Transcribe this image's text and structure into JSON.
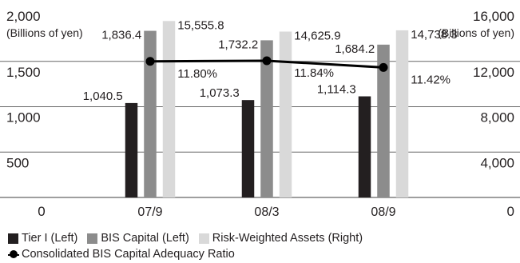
{
  "chart_data": {
    "type": "bar",
    "title": "",
    "categories": [
      "07/9",
      "08/3",
      "08/9"
    ],
    "left_axis": {
      "unit_label": "(Billions of yen)",
      "range": [
        0,
        2000
      ],
      "ticks": [
        0,
        500,
        1000,
        1500,
        2000
      ],
      "tick_labels": [
        "0",
        "500",
        "1,000",
        "1,500",
        "2,000"
      ]
    },
    "right_axis": {
      "unit_label": "(Billions of yen)",
      "range": [
        0,
        16000
      ],
      "ticks": [
        0,
        4000,
        8000,
        12000,
        16000
      ],
      "tick_labels": [
        "0",
        "4,000",
        "8,000",
        "12,000",
        "16,000"
      ]
    },
    "series": [
      {
        "name": "Tier I (Left)",
        "axis": "left",
        "color": "#231f20",
        "values": [
          1040.5,
          1073.3,
          1114.3
        ],
        "labels": [
          "1,040.5",
          "1,073.3",
          "1,114.3"
        ]
      },
      {
        "name": "BIS Capital (Left)",
        "axis": "left",
        "color": "#8c8c8c",
        "values": [
          1836.4,
          1732.2,
          1684.2
        ],
        "labels": [
          "1,836.4",
          "1,732.2",
          "1,684.2"
        ]
      },
      {
        "name": "Risk-Weighted Assets (Right)",
        "axis": "right",
        "color": "#d9d9d9",
        "values": [
          15555.8,
          14625.9,
          14738.3
        ],
        "labels": [
          "15,555.8",
          "14,625.9",
          "14,738.3"
        ]
      }
    ],
    "line_series": {
      "name": "Consolidated BIS Capital Adequacy Ratio",
      "color": "#000000",
      "values": [
        11.8,
        11.84,
        11.42
      ],
      "labels": [
        "11.80%",
        "11.84%",
        "11.42%"
      ]
    },
    "grid": true,
    "legend_position": "bottom-left"
  }
}
